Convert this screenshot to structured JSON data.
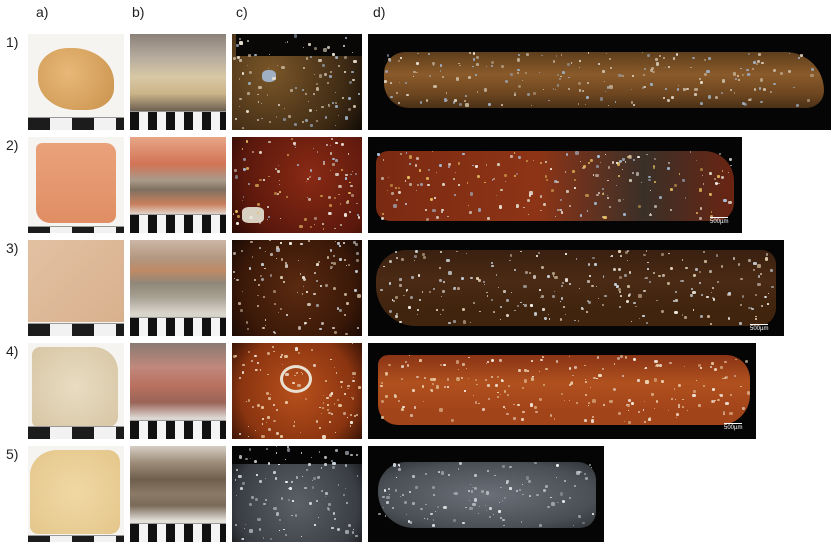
{
  "columns": [
    "a)",
    "b)",
    "c)",
    "d)"
  ],
  "rows": [
    "1)",
    "2)",
    "3)",
    "4)",
    "5)"
  ],
  "scale_label": "500µm",
  "colors": {
    "row1": "#8a5a2a",
    "row2": "#7a2a12",
    "row3": "#4a2a14",
    "row4": "#a2441a",
    "row5": "#4a4f55"
  }
}
